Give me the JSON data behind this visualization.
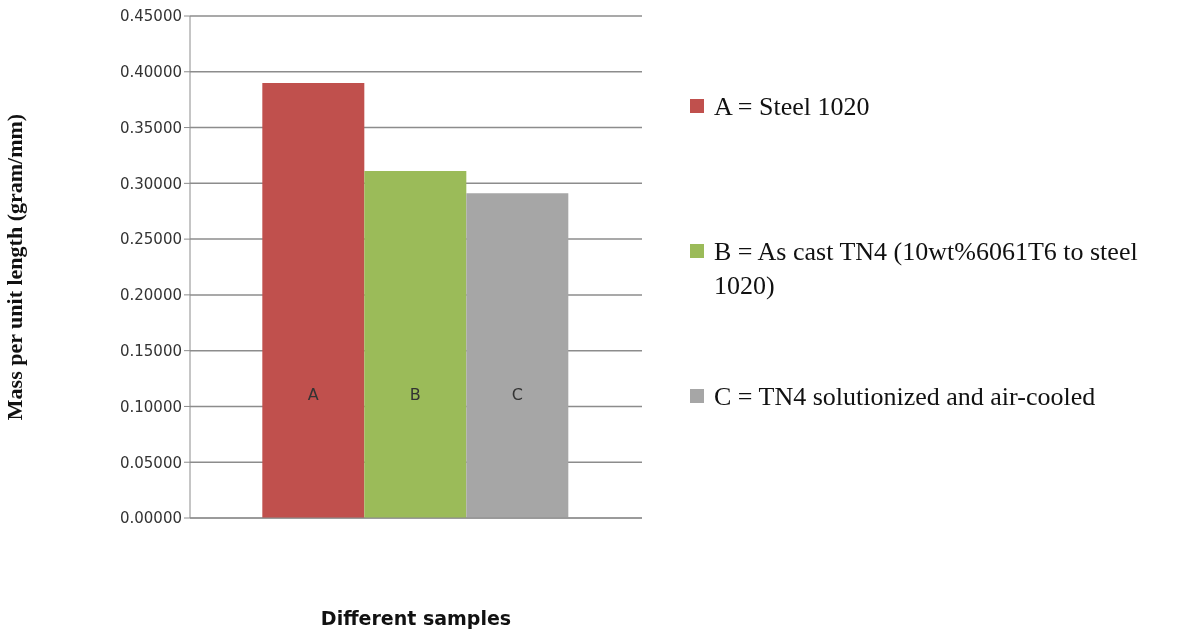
{
  "chart_data": {
    "type": "bar",
    "xlabel": "Different samples",
    "ylabel": "Mass per unit length (gram/mm)",
    "categories": [
      null
    ],
    "series": [
      {
        "name": "A = Steel 1020",
        "color": "#c0504d",
        "values": [
          0.39
        ],
        "value_labels": [
          "A"
        ]
      },
      {
        "name": "B = As cast TN4 (10wt%6061T6 to steel 1020)",
        "color": "#9bbb59",
        "values": [
          0.311
        ],
        "value_labels": [
          "B"
        ]
      },
      {
        "name": "C = TN4 solutionized and air-cooled",
        "color": "#a6a6a6",
        "values": [
          0.291
        ],
        "value_labels": [
          "C"
        ]
      }
    ],
    "ylim": [
      0,
      0.45
    ],
    "yticks": [
      {
        "value": 0,
        "label": "0.00000"
      },
      {
        "value": 0.05,
        "label": "0.05000"
      },
      {
        "value": 0.1,
        "label": "0.10000"
      },
      {
        "value": 0.15,
        "label": "0.15000"
      },
      {
        "value": 0.2,
        "label": "0.20000"
      },
      {
        "value": 0.25,
        "label": "0.25000"
      },
      {
        "value": 0.3,
        "label": "0.30000"
      },
      {
        "value": 0.35,
        "label": "0.35000"
      },
      {
        "value": 0.4,
        "label": "0.40000"
      },
      {
        "value": 0.45,
        "label": "0.45000"
      }
    ],
    "grid": "y",
    "legend": "right"
  }
}
